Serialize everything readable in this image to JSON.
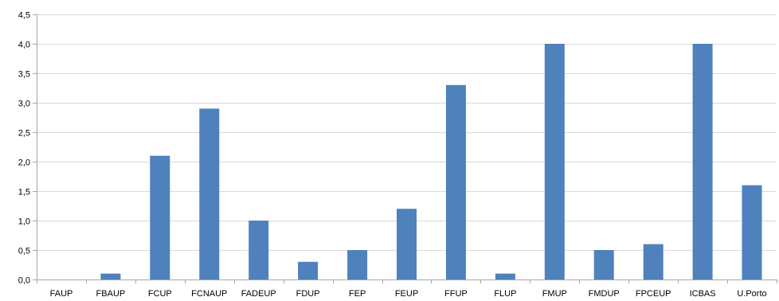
{
  "chart_data": {
    "type": "bar",
    "categories": [
      "FAUP",
      "FBAUP",
      "FCUP",
      "FCNAUP",
      "FADEUP",
      "FDUP",
      "FEP",
      "FEUP",
      "FFUP",
      "FLUP",
      "FMUP",
      "FMDUP",
      "FPCEUP",
      "ICBAS",
      "U.Porto"
    ],
    "values": [
      0.0,
      0.1,
      2.1,
      2.9,
      1.0,
      0.3,
      0.5,
      1.2,
      3.3,
      0.1,
      4.0,
      0.5,
      0.6,
      4.0,
      1.6
    ],
    "y_ticks": [
      "0,0",
      "0,5",
      "1,0",
      "1,5",
      "2,0",
      "2,5",
      "3,0",
      "3,5",
      "4,0",
      "4,5"
    ],
    "ylim": [
      0,
      4.5
    ],
    "grid": true,
    "legend": "none",
    "colors": {
      "bar": "#4F81BD",
      "grid": "#D9D9D9",
      "axis": "#A6A6A6"
    }
  }
}
